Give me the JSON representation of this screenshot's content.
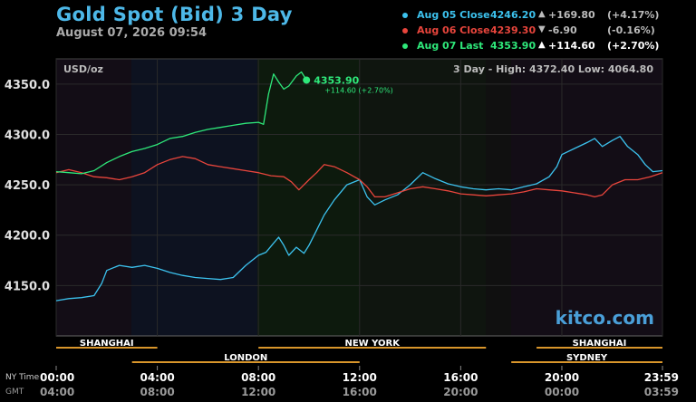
{
  "header": {
    "title": "Gold Spot (Bid) 3 Day",
    "subtitle": "August 07, 2026 09:54"
  },
  "legend": [
    {
      "label": "Aug 05 Close",
      "value": "4246.20",
      "arrow": "▲",
      "change": "+169.80",
      "percent": "(+4.17%)",
      "color": "#3cc2ee"
    },
    {
      "label": "Aug 06 Close",
      "value": "4239.30",
      "arrow": "▼",
      "change": "-6.90",
      "percent": "(-0.16%)",
      "color": "#e8453c"
    },
    {
      "label": "Aug 07 Last",
      "value": "4353.90",
      "arrow": "▲",
      "change": "+114.60",
      "percent": "(+2.70%)",
      "color": "#2ee87a"
    }
  ],
  "chart_data": {
    "type": "line",
    "unit_label": "USD/oz",
    "range_label": "3 Day - High: 4372.40  Low: 4064.80",
    "ylim": [
      4100,
      4375
    ],
    "y_ticks": [
      "4350.0",
      "4300.0",
      "4250.0",
      "4200.0",
      "4150.0"
    ],
    "y_tick_values": [
      4350,
      4300,
      4250,
      4200,
      4150
    ],
    "x_ticks_ny": [
      "00:00",
      "04:00",
      "08:00",
      "12:00",
      "16:00",
      "20:00",
      "23:59"
    ],
    "x_ticks_gmt": [
      "04:00",
      "08:00",
      "12:00",
      "16:00",
      "20:00",
      "00:00",
      "03:59"
    ],
    "x_tick_hours": [
      0,
      4,
      8,
      12,
      16,
      20,
      23.98
    ],
    "ny_time_label": "NY Time",
    "gmt_label": "GMT",
    "sessions_top": [
      {
        "name": "SHANGHAI",
        "start": 0,
        "end": 4
      },
      {
        "name": "NEW YORK",
        "start": 8,
        "end": 17
      },
      {
        "name": "SHANGHAI",
        "start": 19,
        "end": 23.98
      }
    ],
    "sessions_bottom": [
      {
        "name": "LONDON",
        "start": 3,
        "end": 12
      },
      {
        "name": "SYDNEY",
        "start": 18,
        "end": 23.98
      }
    ],
    "last_point": {
      "price": "4353.90",
      "change": "+114.60 (+2.70%)",
      "hour": 9.9,
      "value": 4353.9
    },
    "watermark": "kitco.com",
    "series": [
      {
        "name": "Aug 05 Close",
        "color": "#3cc2ee",
        "points": [
          [
            0,
            4135
          ],
          [
            0.5,
            4137
          ],
          [
            1,
            4138
          ],
          [
            1.5,
            4140
          ],
          [
            1.8,
            4152
          ],
          [
            2,
            4165
          ],
          [
            2.5,
            4170
          ],
          [
            3,
            4168
          ],
          [
            3.5,
            4170
          ],
          [
            4,
            4167
          ],
          [
            4.5,
            4163
          ],
          [
            5,
            4160
          ],
          [
            5.5,
            4158
          ],
          [
            6,
            4157
          ],
          [
            6.5,
            4156
          ],
          [
            7,
            4158
          ],
          [
            7.5,
            4170
          ],
          [
            8,
            4180
          ],
          [
            8.3,
            4183
          ],
          [
            8.6,
            4192
          ],
          [
            8.8,
            4198
          ],
          [
            9,
            4190
          ],
          [
            9.2,
            4180
          ],
          [
            9.5,
            4188
          ],
          [
            9.8,
            4182
          ],
          [
            10,
            4190
          ],
          [
            10.3,
            4205
          ],
          [
            10.6,
            4220
          ],
          [
            11,
            4235
          ],
          [
            11.5,
            4250
          ],
          [
            12,
            4255
          ],
          [
            12.3,
            4238
          ],
          [
            12.6,
            4230
          ],
          [
            13,
            4235
          ],
          [
            13.5,
            4240
          ],
          [
            14,
            4250
          ],
          [
            14.5,
            4262
          ],
          [
            15,
            4256
          ],
          [
            15.5,
            4251
          ],
          [
            16,
            4248
          ],
          [
            16.5,
            4246
          ],
          [
            17,
            4245
          ],
          [
            17.5,
            4246
          ],
          [
            18,
            4245
          ],
          [
            18.5,
            4248
          ],
          [
            19,
            4251
          ],
          [
            19.5,
            4258
          ],
          [
            19.8,
            4268
          ],
          [
            20,
            4280
          ],
          [
            20.5,
            4286
          ],
          [
            21,
            4292
          ],
          [
            21.3,
            4296
          ],
          [
            21.6,
            4288
          ],
          [
            22,
            4294
          ],
          [
            22.3,
            4298
          ],
          [
            22.6,
            4288
          ],
          [
            23,
            4280
          ],
          [
            23.3,
            4270
          ],
          [
            23.6,
            4263
          ],
          [
            23.98,
            4264
          ]
        ]
      },
      {
        "name": "Aug 06 Close",
        "color": "#e8453c",
        "points": [
          [
            0,
            4262
          ],
          [
            0.5,
            4265
          ],
          [
            1,
            4262
          ],
          [
            1.5,
            4258
          ],
          [
            2,
            4257
          ],
          [
            2.5,
            4255
          ],
          [
            3,
            4258
          ],
          [
            3.5,
            4262
          ],
          [
            4,
            4270
          ],
          [
            4.5,
            4275
          ],
          [
            5,
            4278
          ],
          [
            5.5,
            4276
          ],
          [
            6,
            4270
          ],
          [
            6.5,
            4268
          ],
          [
            7,
            4266
          ],
          [
            7.5,
            4264
          ],
          [
            8,
            4262
          ],
          [
            8.5,
            4259
          ],
          [
            9,
            4258
          ],
          [
            9.3,
            4253
          ],
          [
            9.6,
            4245
          ],
          [
            10,
            4255
          ],
          [
            10.3,
            4262
          ],
          [
            10.6,
            4270
          ],
          [
            11,
            4268
          ],
          [
            11.5,
            4262
          ],
          [
            12,
            4255
          ],
          [
            12.3,
            4248
          ],
          [
            12.6,
            4238
          ],
          [
            13,
            4238
          ],
          [
            13.5,
            4242
          ],
          [
            14,
            4246
          ],
          [
            14.5,
            4248
          ],
          [
            15,
            4246
          ],
          [
            15.5,
            4244
          ],
          [
            16,
            4241
          ],
          [
            16.5,
            4240
          ],
          [
            17,
            4239
          ],
          [
            17.5,
            4240
          ],
          [
            18,
            4241
          ],
          [
            18.5,
            4243
          ],
          [
            19,
            4246
          ],
          [
            19.5,
            4245
          ],
          [
            20,
            4244
          ],
          [
            20.5,
            4242
          ],
          [
            21,
            4240
          ],
          [
            21.3,
            4238
          ],
          [
            21.6,
            4240
          ],
          [
            22,
            4250
          ],
          [
            22.5,
            4255
          ],
          [
            23,
            4255
          ],
          [
            23.5,
            4258
          ],
          [
            23.98,
            4262
          ]
        ]
      },
      {
        "name": "Aug 07 Last",
        "color": "#2ee87a",
        "points": [
          [
            0,
            4263
          ],
          [
            0.5,
            4262
          ],
          [
            1,
            4261
          ],
          [
            1.5,
            4264
          ],
          [
            2,
            4272
          ],
          [
            2.5,
            4278
          ],
          [
            3,
            4283
          ],
          [
            3.5,
            4286
          ],
          [
            4,
            4290
          ],
          [
            4.5,
            4296
          ],
          [
            5,
            4298
          ],
          [
            5.5,
            4302
          ],
          [
            6,
            4305
          ],
          [
            6.5,
            4307
          ],
          [
            7,
            4309
          ],
          [
            7.5,
            4311
          ],
          [
            8,
            4312
          ],
          [
            8.2,
            4310
          ],
          [
            8.4,
            4340
          ],
          [
            8.6,
            4360
          ],
          [
            8.8,
            4352
          ],
          [
            9,
            4345
          ],
          [
            9.2,
            4348
          ],
          [
            9.5,
            4358
          ],
          [
            9.7,
            4362
          ],
          [
            9.9,
            4353.9
          ]
        ]
      }
    ]
  }
}
